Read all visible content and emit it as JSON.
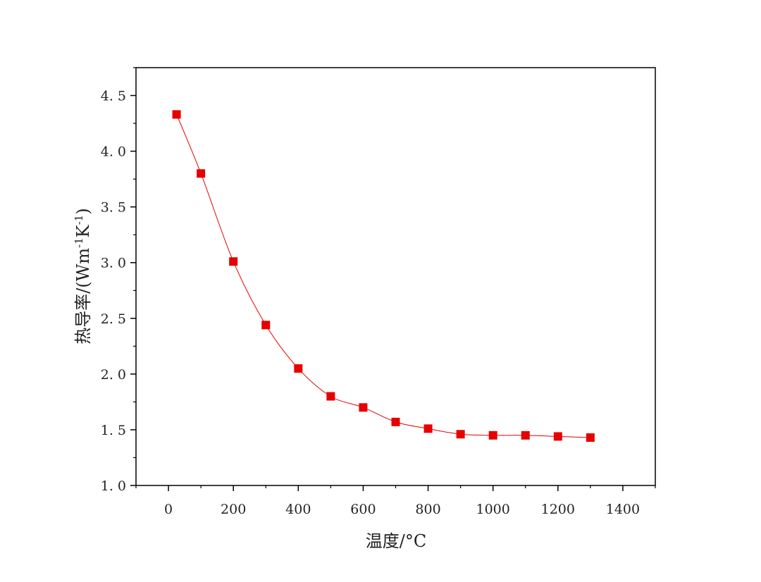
{
  "chart_data": {
    "type": "line",
    "title": "",
    "xlabel": "温度/°C",
    "ylabel": "热导率/(Wm-1K-1)",
    "ylabel_parts": {
      "prefix": "热导率/(Wm",
      "sup1": "-1",
      "mid": "K",
      "sup2": "-1",
      "suffix": ")"
    },
    "xlim": [
      -100,
      1500
    ],
    "ylim": [
      1.0,
      4.75
    ],
    "x_ticks": [
      0,
      200,
      400,
      600,
      800,
      1000,
      1200,
      1400
    ],
    "x_tick_labels": [
      "0",
      "200",
      "400",
      "600",
      "800",
      "1000",
      "1200",
      "1400"
    ],
    "y_ticks": [
      1.0,
      1.5,
      2.0,
      2.5,
      3.0,
      3.5,
      4.0,
      4.5
    ],
    "y_tick_labels": [
      "1. 0",
      "1. 5",
      "2. 0",
      "2. 5",
      "3. 0",
      "3. 5",
      "4. 0",
      "4. 5"
    ],
    "grid": false,
    "legend": "none",
    "series": [
      {
        "color": "#e60000",
        "marker": "square",
        "x": [
          25,
          100,
          200,
          300,
          400,
          500,
          600,
          700,
          800,
          900,
          1000,
          1100,
          1200,
          1300
        ],
        "y": [
          4.33,
          3.8,
          3.01,
          2.44,
          2.05,
          1.8,
          1.7,
          1.57,
          1.51,
          1.46,
          1.45,
          1.45,
          1.44,
          1.43
        ]
      }
    ]
  }
}
